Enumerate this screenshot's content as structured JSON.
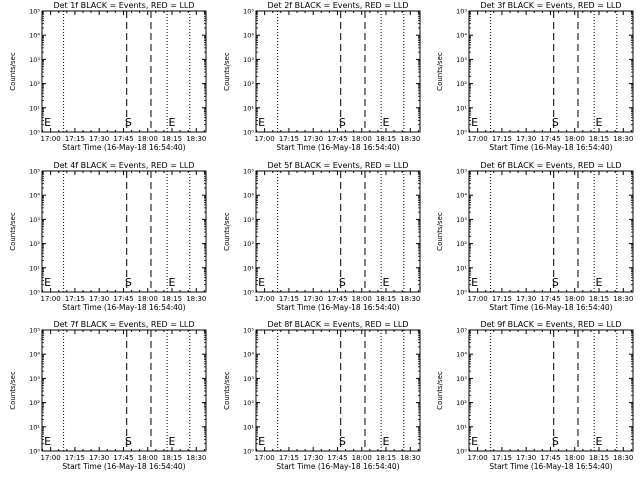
{
  "figure": {
    "panel_title_suffix": "BLACK = Events, RED = LLD",
    "xlabel": "Start Time (16-May-18 16:54:40)",
    "ylabel": "Counts/sec",
    "colors": {
      "background": "#ffffff",
      "axes": "#000000",
      "events": "#000000",
      "lld": "#ff0000"
    }
  },
  "chart_data": [
    {
      "type": "line",
      "title": "Det 1f BLACK = Events, RED = LLD",
      "xlabel": "Start Time (16-May-18 16:54:40)",
      "ylabel": "Counts/sec",
      "x_ticks": [
        "17:00",
        "17:15",
        "17:30",
        "17:45",
        "18:00",
        "18:15",
        "18:30"
      ],
      "y_ticks": [
        "10⁰",
        "10¹",
        "10²",
        "10³",
        "10⁴",
        "10⁵"
      ],
      "y_scale": "log",
      "ylim": [
        1,
        100000
      ],
      "xlim": [
        "16:54:40",
        "18:36:00"
      ],
      "vlines_dotted": [
        "17:08",
        "18:12",
        "18:26"
      ],
      "vlines_dashed": [
        "17:47",
        "18:02"
      ],
      "markers": [
        {
          "label": "E",
          "x": "16:56"
        },
        {
          "label": "S",
          "x": "17:48"
        },
        {
          "label": "E",
          "x": "18:15"
        }
      ],
      "series": []
    },
    {
      "type": "line",
      "title": "Det 2f BLACK = Events, RED = LLD",
      "xlabel": "Start Time (16-May-18 16:54:40)",
      "ylabel": "Counts/sec",
      "x_ticks": [
        "17:00",
        "17:15",
        "17:30",
        "17:45",
        "18:00",
        "18:15",
        "18:30"
      ],
      "y_ticks": [
        "10⁰",
        "10¹",
        "10²",
        "10³",
        "10⁴",
        "10⁵"
      ],
      "y_scale": "log",
      "ylim": [
        1,
        100000
      ],
      "xlim": [
        "16:54:40",
        "18:36:00"
      ],
      "vlines_dotted": [
        "17:08",
        "18:12",
        "18:26"
      ],
      "vlines_dashed": [
        "17:47",
        "18:02"
      ],
      "markers": [
        {
          "label": "E",
          "x": "16:56"
        },
        {
          "label": "S",
          "x": "17:48"
        },
        {
          "label": "E",
          "x": "18:15"
        }
      ],
      "series": []
    },
    {
      "type": "line",
      "title": "Det 3f BLACK = Events, RED = LLD",
      "xlabel": "Start Time (16-May-18 16:54:40)",
      "ylabel": "Counts/sec",
      "x_ticks": [
        "17:00",
        "17:15",
        "17:30",
        "17:45",
        "18:00",
        "18:15",
        "18:30"
      ],
      "y_ticks": [
        "10⁰",
        "10¹",
        "10²",
        "10³",
        "10⁴",
        "10⁵"
      ],
      "y_scale": "log",
      "ylim": [
        1,
        100000
      ],
      "xlim": [
        "16:54:40",
        "18:36:00"
      ],
      "vlines_dotted": [
        "17:08",
        "18:12",
        "18:26"
      ],
      "vlines_dashed": [
        "17:47",
        "18:02"
      ],
      "markers": [
        {
          "label": "E",
          "x": "16:56"
        },
        {
          "label": "S",
          "x": "17:48"
        },
        {
          "label": "E",
          "x": "18:15"
        }
      ],
      "series": []
    },
    {
      "type": "line",
      "title": "Det 4f BLACK = Events, RED = LLD",
      "xlabel": "Start Time (16-May-18 16:54:40)",
      "ylabel": "Counts/sec",
      "x_ticks": [
        "17:00",
        "17:15",
        "17:30",
        "17:45",
        "18:00",
        "18:15",
        "18:30"
      ],
      "y_ticks": [
        "10⁰",
        "10¹",
        "10²",
        "10³",
        "10⁴",
        "10⁵"
      ],
      "y_scale": "log",
      "ylim": [
        1,
        100000
      ],
      "xlim": [
        "16:54:40",
        "18:36:00"
      ],
      "vlines_dotted": [
        "17:08",
        "18:12",
        "18:26"
      ],
      "vlines_dashed": [
        "17:47",
        "18:02"
      ],
      "markers": [
        {
          "label": "E",
          "x": "16:56"
        },
        {
          "label": "S",
          "x": "17:48"
        },
        {
          "label": "E",
          "x": "18:15"
        }
      ],
      "series": []
    },
    {
      "type": "line",
      "title": "Det 5f BLACK = Events, RED = LLD",
      "xlabel": "Start Time (16-May-18 16:54:40)",
      "ylabel": "Counts/sec",
      "x_ticks": [
        "17:00",
        "17:15",
        "17:30",
        "17:45",
        "18:00",
        "18:15",
        "18:30"
      ],
      "y_ticks": [
        "10⁰",
        "10¹",
        "10²",
        "10³",
        "10⁴",
        "10⁵"
      ],
      "y_scale": "log",
      "ylim": [
        1,
        100000
      ],
      "xlim": [
        "16:54:40",
        "18:36:00"
      ],
      "vlines_dotted": [
        "17:08",
        "18:12",
        "18:26"
      ],
      "vlines_dashed": [
        "17:47",
        "18:02"
      ],
      "markers": [
        {
          "label": "E",
          "x": "16:56"
        },
        {
          "label": "S",
          "x": "17:48"
        },
        {
          "label": "E",
          "x": "18:15"
        }
      ],
      "series": []
    },
    {
      "type": "line",
      "title": "Det 6f BLACK = Events, RED = LLD",
      "xlabel": "Start Time (16-May-18 16:54:40)",
      "ylabel": "Counts/sec",
      "x_ticks": [
        "17:00",
        "17:15",
        "17:30",
        "17:45",
        "18:00",
        "18:15",
        "18:30"
      ],
      "y_ticks": [
        "10⁰",
        "10¹",
        "10²",
        "10³",
        "10⁴",
        "10⁵"
      ],
      "y_scale": "log",
      "ylim": [
        1,
        100000
      ],
      "xlim": [
        "16:54:40",
        "18:36:00"
      ],
      "vlines_dotted": [
        "17:08",
        "18:12",
        "18:26"
      ],
      "vlines_dashed": [
        "17:47",
        "18:02"
      ],
      "markers": [
        {
          "label": "E",
          "x": "16:56"
        },
        {
          "label": "S",
          "x": "17:48"
        },
        {
          "label": "E",
          "x": "18:15"
        }
      ],
      "series": []
    },
    {
      "type": "line",
      "title": "Det 7f BLACK = Events, RED = LLD",
      "xlabel": "Start Time (16-May-18 16:54:40)",
      "ylabel": "Counts/sec",
      "x_ticks": [
        "17:00",
        "17:15",
        "17:30",
        "17:45",
        "18:00",
        "18:15",
        "18:30"
      ],
      "y_ticks": [
        "10⁰",
        "10¹",
        "10²",
        "10³",
        "10⁴",
        "10⁵"
      ],
      "y_scale": "log",
      "ylim": [
        1,
        100000
      ],
      "xlim": [
        "16:54:40",
        "18:36:00"
      ],
      "vlines_dotted": [
        "17:08",
        "18:12",
        "18:26"
      ],
      "vlines_dashed": [
        "17:47",
        "18:02"
      ],
      "markers": [
        {
          "label": "E",
          "x": "16:56"
        },
        {
          "label": "S",
          "x": "17:48"
        },
        {
          "label": "E",
          "x": "18:15"
        }
      ],
      "series": []
    },
    {
      "type": "line",
      "title": "Det 8f BLACK = Events, RED = LLD",
      "xlabel": "Start Time (16-May-18 16:54:40)",
      "ylabel": "Counts/sec",
      "x_ticks": [
        "17:00",
        "17:15",
        "17:30",
        "17:45",
        "18:00",
        "18:15",
        "18:30"
      ],
      "y_ticks": [
        "10⁰",
        "10¹",
        "10²",
        "10³",
        "10⁴",
        "10⁵"
      ],
      "y_scale": "log",
      "ylim": [
        1,
        100000
      ],
      "xlim": [
        "16:54:40",
        "18:36:00"
      ],
      "vlines_dotted": [
        "17:08",
        "18:12",
        "18:26"
      ],
      "vlines_dashed": [
        "17:47",
        "18:02"
      ],
      "markers": [
        {
          "label": "E",
          "x": "16:56"
        },
        {
          "label": "S",
          "x": "17:48"
        },
        {
          "label": "E",
          "x": "18:15"
        }
      ],
      "series": []
    },
    {
      "type": "line",
      "title": "Det 9f BLACK = Events, RED = LLD",
      "xlabel": "Start Time (16-May-18 16:54:40)",
      "ylabel": "Counts/sec",
      "x_ticks": [
        "17:00",
        "17:15",
        "17:30",
        "17:45",
        "18:00",
        "18:15",
        "18:30"
      ],
      "y_ticks": [
        "10⁰",
        "10¹",
        "10²",
        "10³",
        "10⁴",
        "10⁵"
      ],
      "y_scale": "log",
      "ylim": [
        1,
        100000
      ],
      "xlim": [
        "16:54:40",
        "18:36:00"
      ],
      "vlines_dotted": [
        "17:08",
        "18:12",
        "18:26"
      ],
      "vlines_dashed": [
        "17:47",
        "18:02"
      ],
      "markers": [
        {
          "label": "E",
          "x": "16:56"
        },
        {
          "label": "S",
          "x": "17:48"
        },
        {
          "label": "E",
          "x": "18:15"
        }
      ],
      "series": []
    }
  ]
}
